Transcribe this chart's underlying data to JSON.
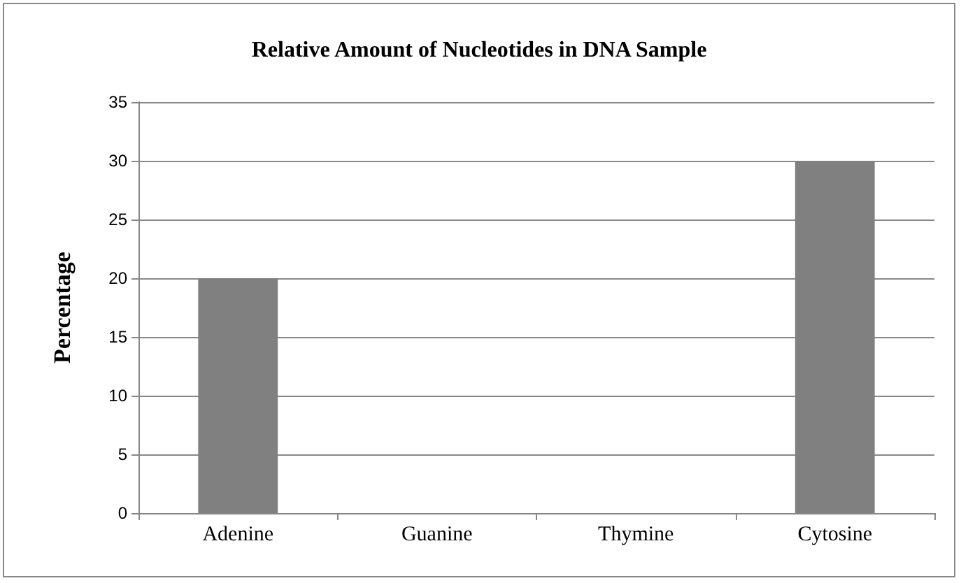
{
  "chart_data": {
    "type": "bar",
    "title": "Relative Amount of Nucleotides in DNA Sample",
    "ylabel": "Percentage",
    "categories": [
      "Adenine",
      "Guanine",
      "Thymine",
      "Cytosine"
    ],
    "values": [
      20,
      null,
      null,
      30
    ],
    "color": "#808080",
    "ylim": [
      0,
      35
    ],
    "yticks": [
      0,
      5,
      10,
      15,
      20,
      25,
      30,
      35
    ],
    "grid": "y"
  }
}
